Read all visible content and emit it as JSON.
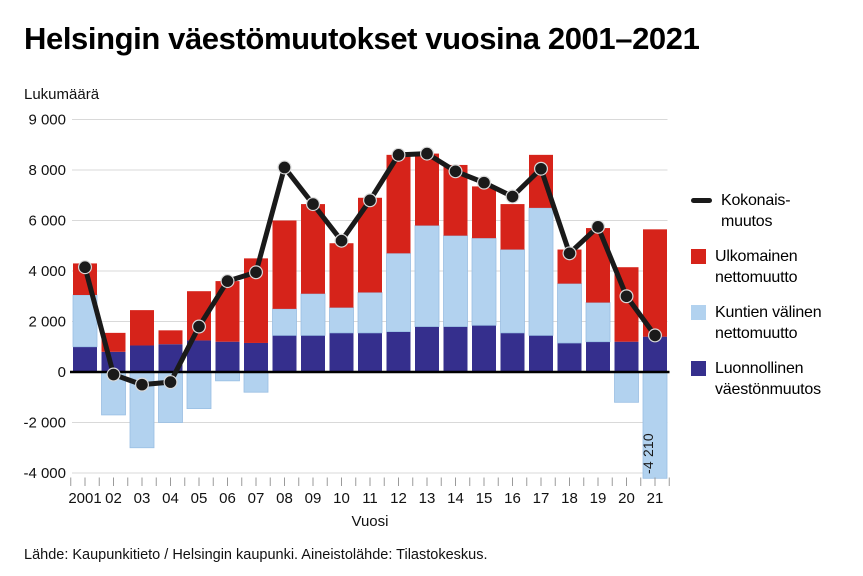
{
  "page": {
    "title": "Helsingin väestömuutokset vuosina 2001–2021",
    "source": "Lähde: Kaupunkitieto / Helsingin kaupunki. Aineistolähde: Tilastokeskus."
  },
  "legend": {
    "items": [
      {
        "line1": "Kokonais-",
        "line2": "muutos",
        "swatch": "line",
        "color": "#1a1a1a"
      },
      {
        "line1": "Ulkomainen",
        "line2": "nettomuutto",
        "swatch": "square",
        "color": "#d6231a"
      },
      {
        "line1": "Kuntien välinen",
        "line2": "nettomuutto",
        "swatch": "square",
        "color": "#b2d2ef"
      },
      {
        "line1": "Luonnollinen",
        "line2": "väestönmuutos",
        "swatch": "square",
        "color": "#352f8d"
      }
    ]
  },
  "chart_data": {
    "type": "bar",
    "subtype": "stacked-bars-with-line",
    "title": "Helsingin väestömuutokset vuosina 2001–2021",
    "xlabel": "Vuosi",
    "ylabel": "Lukumäärä",
    "categories": [
      "2001",
      "02",
      "03",
      "04",
      "05",
      "06",
      "07",
      "08",
      "09",
      "10",
      "11",
      "12",
      "13",
      "14",
      "15",
      "16",
      "17",
      "18",
      "19",
      "20",
      "21"
    ],
    "series": [
      {
        "name": "Luonnollinen väestönmuutos",
        "color": "#352f8d",
        "values": [
          1000,
          800,
          1050,
          1100,
          1250,
          1200,
          1150,
          1450,
          1450,
          1550,
          1550,
          1600,
          1800,
          1800,
          1850,
          1550,
          1450,
          1150,
          1200,
          1200,
          1400
        ]
      },
      {
        "name": "Kuntien välinen nettomuutto",
        "color": "#b2d2ef",
        "values": [
          2050,
          -1700,
          -3000,
          -2000,
          -1450,
          -350,
          -800,
          1050,
          1650,
          1000,
          1600,
          3100,
          4000,
          3600,
          3450,
          3300,
          5050,
          2350,
          1550,
          -1200,
          -4210
        ]
      },
      {
        "name": "Ulkomainen nettomuutto",
        "color": "#d6231a",
        "values": [
          1250,
          750,
          1400,
          550,
          1950,
          2400,
          3350,
          3500,
          3550,
          2550,
          3750,
          3900,
          2850,
          2800,
          2050,
          1800,
          2100,
          1350,
          2950,
          2950,
          4250
        ]
      },
      {
        "name": "Kokonaismuutos",
        "type": "line",
        "color": "#1a1a1a",
        "values": [
          4150,
          -100,
          -500,
          -400,
          1800,
          3600,
          3950,
          8100,
          6650,
          5200,
          6800,
          8600,
          8650,
          7950,
          7500,
          6950,
          8050,
          4700,
          5750,
          3000,
          1450
        ]
      }
    ],
    "ytick_labels": [
      "9 000",
      "8 000",
      "6 000",
      "4 000",
      "2 000",
      "0",
      "-2 000",
      "-4 000"
    ],
    "ylim": [
      -4400,
      10000
    ],
    "grid": "horizontal",
    "legend_position": "right",
    "annotation": {
      "text": "-4 210",
      "year": "21"
    }
  }
}
